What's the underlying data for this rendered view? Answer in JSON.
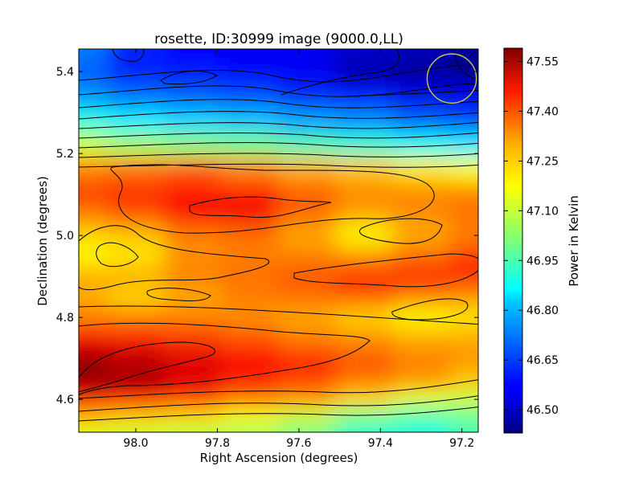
{
  "chart_data": {
    "type": "heatmap",
    "title": "rosette, ID:30999 image (9000.0,LL)",
    "xlabel": "Right Ascension (degrees)",
    "ylabel": "Declination (degrees)",
    "xlim": [
      98.14,
      97.16
    ],
    "ylim": [
      4.52,
      5.455
    ],
    "x_ticks": [
      {
        "value": 98.0,
        "label": "98.0"
      },
      {
        "value": 97.8,
        "label": "97.8"
      },
      {
        "value": 97.6,
        "label": "97.6"
      },
      {
        "value": 97.4,
        "label": "97.4"
      },
      {
        "value": 97.2,
        "label": "97.2"
      }
    ],
    "y_ticks": [
      {
        "value": 4.6,
        "label": "4.6"
      },
      {
        "value": 4.8,
        "label": "4.8"
      },
      {
        "value": 5.0,
        "label": "5.0"
      },
      {
        "value": 5.2,
        "label": "5.2"
      },
      {
        "value": 5.4,
        "label": "5.4"
      }
    ],
    "colorbar": {
      "label": "Power in Kelvin",
      "range": [
        46.43,
        47.59
      ],
      "colormap": "jet",
      "ticks": [
        {
          "value": 46.5,
          "label": "46.50"
        },
        {
          "value": 46.65,
          "label": "46.65"
        },
        {
          "value": 46.8,
          "label": "46.80"
        },
        {
          "value": 46.95,
          "label": "46.95"
        },
        {
          "value": 47.1,
          "label": "47.10"
        },
        {
          "value": 47.25,
          "label": "47.25"
        },
        {
          "value": 47.4,
          "label": "47.40"
        },
        {
          "value": 47.55,
          "label": "47.55"
        }
      ]
    },
    "beam_circle": {
      "ra": 97.225,
      "dec": 5.383,
      "radius_deg": 0.06,
      "color": "#c8c850"
    },
    "grid": false,
    "field_samples": [
      {
        "dec": 5.455,
        "values": [
          46.72,
          46.62,
          46.58,
          46.56,
          46.56,
          46.52,
          46.5,
          46.46
        ]
      },
      {
        "dec": 5.4,
        "values": [
          46.68,
          46.6,
          46.6,
          46.58,
          46.56,
          46.48,
          46.46,
          46.44
        ]
      },
      {
        "dec": 5.34,
        "values": [
          46.75,
          46.7,
          46.68,
          46.66,
          46.62,
          46.6,
          46.55,
          46.55
        ]
      },
      {
        "dec": 5.28,
        "values": [
          46.9,
          46.85,
          46.82,
          46.8,
          46.76,
          46.74,
          46.68,
          46.65
        ]
      },
      {
        "dec": 5.22,
        "values": [
          47.1,
          47.05,
          47.02,
          47.0,
          46.95,
          46.92,
          46.88,
          46.85
        ]
      },
      {
        "dec": 5.16,
        "values": [
          47.3,
          47.32,
          47.35,
          47.3,
          47.25,
          47.22,
          47.18,
          47.15
        ]
      },
      {
        "dec": 5.1,
        "values": [
          47.38,
          47.4,
          47.42,
          47.42,
          47.35,
          47.3,
          47.3,
          47.3
        ]
      },
      {
        "dec": 5.05,
        "values": [
          47.3,
          47.35,
          47.45,
          47.46,
          47.32,
          47.25,
          47.28,
          47.32
        ]
      },
      {
        "dec": 5.0,
        "values": [
          47.2,
          47.22,
          47.3,
          47.32,
          47.25,
          47.15,
          47.25,
          47.3
        ]
      },
      {
        "dec": 4.95,
        "values": [
          47.15,
          47.18,
          47.28,
          47.3,
          47.3,
          47.28,
          47.32,
          47.38
        ]
      },
      {
        "dec": 4.9,
        "values": [
          47.25,
          47.25,
          47.3,
          47.32,
          47.35,
          47.4,
          47.42,
          47.4
        ]
      },
      {
        "dec": 4.85,
        "values": [
          47.25,
          47.2,
          47.25,
          47.3,
          47.32,
          47.35,
          47.3,
          47.28
        ]
      },
      {
        "dec": 4.8,
        "values": [
          47.3,
          47.3,
          47.3,
          47.28,
          47.25,
          47.2,
          47.15,
          47.18
        ]
      },
      {
        "dec": 4.75,
        "values": [
          47.45,
          47.42,
          47.38,
          47.35,
          47.3,
          47.28,
          47.25,
          47.25
        ]
      },
      {
        "dec": 4.7,
        "values": [
          47.56,
          47.52,
          47.48,
          47.45,
          47.4,
          47.35,
          47.3,
          47.28
        ]
      },
      {
        "dec": 4.65,
        "values": [
          47.58,
          47.55,
          47.48,
          47.42,
          47.38,
          47.32,
          47.28,
          47.22
        ]
      },
      {
        "dec": 4.6,
        "values": [
          47.45,
          47.45,
          47.4,
          47.32,
          47.28,
          47.2,
          47.12,
          47.1
        ]
      },
      {
        "dec": 4.56,
        "values": [
          47.25,
          47.22,
          47.2,
          47.15,
          47.1,
          47.0,
          46.95,
          46.98
        ]
      },
      {
        "dec": 4.52,
        "values": [
          47.12,
          47.1,
          47.08,
          47.05,
          47.0,
          46.92,
          46.9,
          46.95
        ]
      }
    ],
    "field_ra": [
      98.14,
      98.0,
      97.86,
      97.72,
      97.58,
      97.44,
      97.3,
      97.16
    ]
  }
}
